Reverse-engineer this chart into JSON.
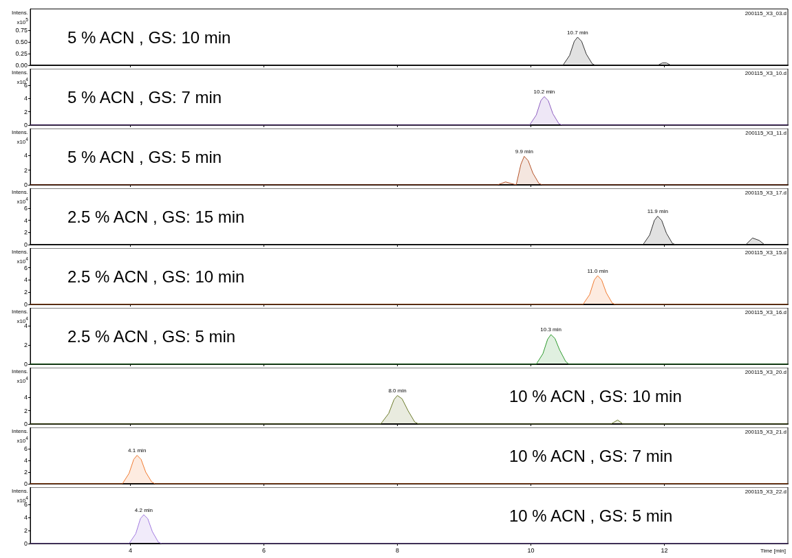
{
  "chart_data": [
    {
      "type": "area",
      "title": "5 % ACN , GS: 10 min",
      "ylabel": "Intens. x10$^{5}$",
      "xlim": [
        2.5,
        13.85
      ],
      "xticks": [
        4,
        6,
        8,
        10,
        12
      ],
      "ylim": [
        0,
        1.2
      ],
      "yticks": [
        {
          "value": 0,
          "label": "0.00"
        },
        {
          "value": 0.25,
          "label": "0.25"
        },
        {
          "value": 0.5,
          "label": "0.50"
        },
        {
          "value": 0.75,
          "label": "0.75"
        }
      ],
      "tick_labels": "y",
      "grid": false,
      "series": [
        {
          "color": "#333333",
          "x": [
            2.5,
            10.48,
            10.58,
            10.65,
            10.7,
            10.76,
            10.83,
            10.92,
            10.97,
            11.9,
            11.97,
            12.03,
            12.1,
            13.85
          ],
          "values": [
            0,
            0,
            0.21,
            0.51,
            0.6,
            0.51,
            0.24,
            0.03,
            0,
            0,
            0.05,
            0.05,
            0,
            0
          ]
        }
      ],
      "annotations": [
        "200115_X3_03.d",
        {
          "text": "10.7 min",
          "x": 10.7,
          "y": 0.6
        }
      ]
    },
    {
      "type": "area",
      "title": "5 % ACN , GS: 7 min",
      "ylabel": "Intens. x10$^{4}$",
      "xlim": [
        2.5,
        13.85
      ],
      "xticks": [
        4,
        6,
        8,
        10,
        12
      ],
      "ylim": [
        0,
        8.5
      ],
      "yticks": [
        0,
        2,
        4,
        6
      ],
      "tick_labels": "y",
      "grid": false,
      "series": [
        {
          "color": "#8e5fc0",
          "x": [
            2.5,
            9.98,
            10.08,
            10.15,
            10.2,
            10.26,
            10.33,
            10.42,
            10.47,
            13.85
          ],
          "values": [
            0,
            0,
            1.5,
            3.7,
            4.3,
            3.7,
            1.7,
            0.2,
            0,
            0
          ]
        }
      ],
      "annotations": [
        "200115_X3_10.d",
        {
          "text": "10.2 min",
          "x": 10.2,
          "y": 4.3
        }
      ]
    },
    {
      "type": "area",
      "title": "5 % ACN , GS: 5 min",
      "ylabel": "Intens. x10$^{4}$",
      "xlim": [
        2.5,
        13.85
      ],
      "xticks": [
        4,
        6,
        8,
        10,
        12
      ],
      "ylim": [
        0,
        7.7
      ],
      "yticks": [
        0,
        2,
        4
      ],
      "tick_labels": "y",
      "grid": false,
      "series": [
        {
          "color": "#b5542a",
          "x": [
            2.5,
            9.5,
            9.62,
            9.7,
            9.78,
            9.85,
            9.9,
            9.96,
            10.03,
            10.12,
            10.17,
            13.85
          ],
          "values": [
            0,
            0,
            0.4,
            0.2,
            0,
            2.8,
            3.9,
            3.3,
            1.6,
            0.2,
            0,
            0
          ]
        }
      ],
      "annotations": [
        "200115_X3_11.d",
        {
          "text": "9.9 min",
          "x": 9.9,
          "y": 3.9
        }
      ]
    },
    {
      "type": "area",
      "title": "2.5 % ACN , GS: 15 min",
      "ylabel": "Intens. x10$^{4}$",
      "xlim": [
        2.5,
        13.85
      ],
      "xticks": [
        4,
        6,
        8,
        10,
        12
      ],
      "ylim": [
        0,
        9.3
      ],
      "yticks": [
        0,
        2,
        4,
        6
      ],
      "tick_labels": "y",
      "grid": false,
      "series": [
        {
          "color": "#333333",
          "x": [
            2.5,
            11.68,
            11.78,
            11.85,
            11.9,
            11.96,
            12.03,
            12.12,
            12.17,
            13.22,
            13.32,
            13.42,
            13.5,
            13.85
          ],
          "values": [
            0,
            0,
            1.6,
            4.0,
            4.7,
            4.0,
            1.9,
            0.2,
            0,
            0,
            1.1,
            0.7,
            0,
            0
          ]
        }
      ],
      "annotations": [
        "200115_X3_17.d",
        {
          "text": "11.9 min",
          "x": 11.9,
          "y": 4.7
        }
      ]
    },
    {
      "type": "area",
      "title": "2.5 % ACN , GS: 10 min",
      "ylabel": "Intens. x10$^{4}$",
      "xlim": [
        2.5,
        13.85
      ],
      "xticks": [
        4,
        6,
        8,
        10,
        12
      ],
      "ylim": [
        0,
        9.2
      ],
      "yticks": [
        0,
        2,
        4,
        6
      ],
      "tick_labels": "y",
      "grid": false,
      "series": [
        {
          "color": "#f07a30",
          "x": [
            2.5,
            10.78,
            10.88,
            10.95,
            11.0,
            11.06,
            11.13,
            11.22,
            11.27,
            13.85
          ],
          "values": [
            0,
            0,
            1.6,
            4.0,
            4.7,
            4.0,
            1.9,
            0.2,
            0,
            0
          ]
        }
      ],
      "annotations": [
        "200115_X3_15.d",
        {
          "text": "11.0 min",
          "x": 11.0,
          "y": 4.7
        }
      ]
    },
    {
      "type": "area",
      "title": "2.5 % ACN , GS: 5 min",
      "ylabel": "Intens. x10$^{4}$",
      "xlim": [
        2.5,
        13.85
      ],
      "xticks": [
        4,
        6,
        8,
        10,
        12
      ],
      "ylim": [
        0,
        5.9
      ],
      "yticks": [
        0,
        2,
        4
      ],
      "tick_labels": "y",
      "grid": false,
      "series": [
        {
          "color": "#2e9a2e",
          "x": [
            2.5,
            10.08,
            10.18,
            10.25,
            10.3,
            10.36,
            10.43,
            10.52,
            10.57,
            13.85
          ],
          "values": [
            0,
            0,
            1.1,
            2.6,
            3.1,
            2.7,
            1.5,
            0.3,
            0,
            0
          ]
        }
      ],
      "annotations": [
        "200115_X3_16.d",
        {
          "text": "10.3 min",
          "x": 10.3,
          "y": 3.1
        }
      ]
    },
    {
      "type": "area",
      "title": "10 % ACN , GS: 10 min",
      "ylabel": "Intens. x10$^{4}$",
      "xlim": [
        2.5,
        13.85
      ],
      "xticks": [
        4,
        6,
        8,
        10,
        12
      ],
      "ylim": [
        0,
        8.5
      ],
      "yticks": [
        0,
        2,
        4
      ],
      "tick_labels": "y",
      "grid": false,
      "series": [
        {
          "color": "#6b7a2a",
          "x": [
            2.5,
            7.75,
            7.87,
            7.95,
            8.0,
            8.07,
            8.16,
            8.26,
            8.32,
            11.2,
            11.3,
            11.38,
            13.85
          ],
          "values": [
            0,
            0,
            1.6,
            3.7,
            4.3,
            3.8,
            2.0,
            0.3,
            0,
            0,
            0.6,
            0,
            0
          ]
        }
      ],
      "annotations": [
        "200115_X3_20.d",
        {
          "text": "8.0 min",
          "x": 8.0,
          "y": 4.3
        }
      ]
    },
    {
      "type": "area",
      "title": "10 % ACN , GS: 7 min",
      "ylabel": "Intens. x10$^{4}$",
      "xlim": [
        2.5,
        13.85
      ],
      "xticks": [
        4,
        6,
        8,
        10,
        12
      ],
      "ylim": [
        0,
        9.7
      ],
      "yticks": [
        0,
        2,
        4,
        6
      ],
      "tick_labels": "y",
      "grid": false,
      "series": [
        {
          "color": "#f07a30",
          "x": [
            2.5,
            3.88,
            3.98,
            4.05,
            4.1,
            4.16,
            4.23,
            4.32,
            4.37,
            13.85
          ],
          "values": [
            0,
            0,
            1.8,
            4.2,
            4.9,
            4.2,
            2.0,
            0.3,
            0,
            0
          ]
        }
      ],
      "annotations": [
        "200115_X3_21.d",
        {
          "text": "4.1 min",
          "x": 4.1,
          "y": 4.9
        }
      ]
    },
    {
      "type": "area",
      "title": "10 % ACN , GS: 5 min",
      "ylabel": "Intens. x10$^{4}$",
      "xlabel": "Time [min]",
      "xlim": [
        2.5,
        13.85
      ],
      "xticks": [
        4,
        6,
        8,
        10,
        12
      ],
      "ylim": [
        0,
        8.6
      ],
      "yticks": [
        0,
        2,
        4,
        6
      ],
      "grid": false,
      "series": [
        {
          "color": "#a27be0",
          "x": [
            2.5,
            3.98,
            4.08,
            4.15,
            4.2,
            4.26,
            4.33,
            4.42,
            4.47,
            13.85
          ],
          "values": [
            0,
            0,
            1.5,
            3.8,
            4.4,
            3.8,
            1.8,
            0.2,
            0,
            0
          ]
        }
      ],
      "annotations": [
        "200115_X3_22.d",
        {
          "text": "4.2 min",
          "x": 4.2,
          "y": 4.4
        }
      ]
    }
  ]
}
